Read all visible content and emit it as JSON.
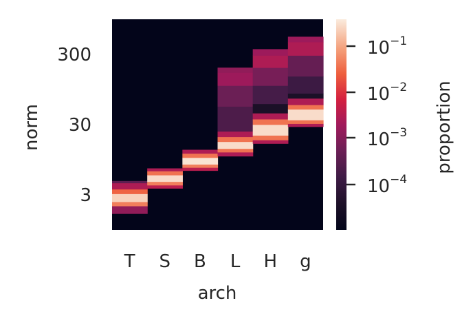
{
  "chart_data": {
    "type": "heatmap",
    "xlabel": "arch",
    "ylabel": "norm",
    "x_categories": [
      "T",
      "S",
      "B",
      "L",
      "H",
      "g"
    ],
    "y_scale": "log",
    "y_ticks": [
      {
        "value": 3,
        "label": "3"
      },
      {
        "value": 30,
        "label": "30"
      },
      {
        "value": 300,
        "label": "300"
      }
    ],
    "y_range": [
      0.9,
      1000
    ],
    "colorbar": {
      "label": "proportion",
      "scale": "log",
      "colormap": "rocket",
      "range": [
        1.2e-05,
        0.4
      ],
      "ticks": [
        {
          "value": 0.0001,
          "base": "10",
          "exp": "−4"
        },
        {
          "value": 0.001,
          "base": "10",
          "exp": "−3"
        },
        {
          "value": 0.01,
          "base": "10",
          "exp": "−2"
        },
        {
          "value": 0.1,
          "base": "10",
          "exp": "−1"
        }
      ]
    },
    "series": [
      {
        "category": "T",
        "peak_norm": 2.6,
        "peak_prop": 0.25,
        "bands": [
          {
            "norm_range": [
              1.55,
              2.0
            ],
            "proportion": 0.0015
          },
          {
            "norm_range": [
              2.0,
              2.3
            ],
            "proportion": 0.05
          },
          {
            "norm_range": [
              2.3,
              3.0
            ],
            "proportion": 0.25
          },
          {
            "norm_range": [
              3.0,
              3.5
            ],
            "proportion": 0.03
          },
          {
            "norm_range": [
              3.5,
              4.3
            ],
            "proportion": 0.003
          },
          {
            "norm_range": [
              4.3,
              4.6
            ],
            "proportion": 0.0004
          }
        ]
      },
      {
        "category": "S",
        "peak_norm": 5.0,
        "peak_prop": 0.3,
        "bands": [
          {
            "norm_range": [
              3.6,
              4.0
            ],
            "proportion": 0.004
          },
          {
            "norm_range": [
              4.0,
              4.5
            ],
            "proportion": 0.05
          },
          {
            "norm_range": [
              4.5,
              5.6
            ],
            "proportion": 0.3
          },
          {
            "norm_range": [
              5.6,
              6.4
            ],
            "proportion": 0.04
          },
          {
            "norm_range": [
              6.4,
              7.0
            ],
            "proportion": 0.003
          }
        ]
      },
      {
        "category": "B",
        "peak_norm": 9.0,
        "peak_prop": 0.35,
        "bands": [
          {
            "norm_range": [
              6.5,
              7.2
            ],
            "proportion": 0.004
          },
          {
            "norm_range": [
              7.2,
              8.0
            ],
            "proportion": 0.05
          },
          {
            "norm_range": [
              8.0,
              10.0
            ],
            "proportion": 0.35
          },
          {
            "norm_range": [
              10.0,
              11.5
            ],
            "proportion": 0.04
          },
          {
            "norm_range": [
              11.5,
              13.0
            ],
            "proportion": 0.003
          }
        ]
      },
      {
        "category": "L",
        "peak_norm": 15.0,
        "peak_prop": 0.3,
        "bands": [
          {
            "norm_range": [
              10.5,
              12.0
            ],
            "proportion": 0.003
          },
          {
            "norm_range": [
              12.0,
              13.5
            ],
            "proportion": 0.04
          },
          {
            "norm_range": [
              13.5,
              17.0
            ],
            "proportion": 0.3
          },
          {
            "norm_range": [
              17.0,
              20.0
            ],
            "proportion": 0.04
          },
          {
            "norm_range": [
              20.0,
              24.0
            ],
            "proportion": 0.003
          },
          {
            "norm_range": [
              24.0,
              55.0
            ],
            "proportion": 0.00025
          },
          {
            "norm_range": [
              55.0,
              110.0
            ],
            "proportion": 0.0006
          },
          {
            "norm_range": [
              110.0,
              170.0
            ],
            "proportion": 0.002
          },
          {
            "norm_range": [
              170.0,
              200.0
            ],
            "proportion": 0.0015
          }
        ]
      },
      {
        "category": "H",
        "peak_norm": 26.0,
        "peak_prop": 0.3,
        "bands": [
          {
            "norm_range": [
              16.0,
              18.0
            ],
            "proportion": 0.003
          },
          {
            "norm_range": [
              18.0,
              21.0
            ],
            "proportion": 0.04
          },
          {
            "norm_range": [
              21.0,
              30.0
            ],
            "proportion": 0.3
          },
          {
            "norm_range": [
              30.0,
              36.0
            ],
            "proportion": 0.04
          },
          {
            "norm_range": [
              36.0,
              44.0
            ],
            "proportion": 0.003
          },
          {
            "norm_range": [
              44.0,
              60.0
            ],
            "proportion": 4e-05
          },
          {
            "norm_range": [
              60.0,
              110.0
            ],
            "proportion": 0.0002
          },
          {
            "norm_range": [
              110.0,
              200.0
            ],
            "proportion": 0.0008
          },
          {
            "norm_range": [
              200.0,
              300.0
            ],
            "proportion": 0.003
          },
          {
            "norm_range": [
              300.0,
              370.0
            ],
            "proportion": 0.002
          }
        ]
      },
      {
        "category": "g",
        "peak_norm": 42.0,
        "peak_prop": 0.3,
        "bands": [
          {
            "norm_range": [
              28.0,
              31.0
            ],
            "proportion": 0.003
          },
          {
            "norm_range": [
              31.0,
              35.0
            ],
            "proportion": 0.04
          },
          {
            "norm_range": [
              35.0,
              50.0
            ],
            "proportion": 0.3
          },
          {
            "norm_range": [
              50.0,
              58.0
            ],
            "proportion": 0.04
          },
          {
            "norm_range": [
              58.0,
              72.0
            ],
            "proportion": 0.003
          },
          {
            "norm_range": [
              72.0,
              85.0
            ],
            "proportion": 4e-05
          },
          {
            "norm_range": [
              85.0,
              150.0
            ],
            "proportion": 0.00015
          },
          {
            "norm_range": [
              150.0,
              300.0
            ],
            "proportion": 0.0005
          },
          {
            "norm_range": [
              300.0,
              470.0
            ],
            "proportion": 0.003
          },
          {
            "norm_range": [
              470.0,
              560.0
            ],
            "proportion": 0.002
          }
        ]
      }
    ]
  }
}
